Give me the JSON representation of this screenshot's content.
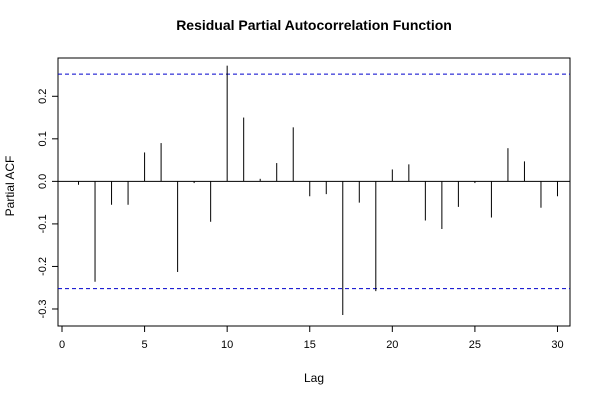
{
  "chart_data": {
    "type": "bar",
    "title": "Residual Partial Autocorrelation Function",
    "xlabel": "Lag",
    "ylabel": "Partial ACF",
    "xlim": [
      0,
      31
    ],
    "ylim": [
      -0.34,
      0.29
    ],
    "x_ticks": [
      0,
      5,
      10,
      15,
      20,
      25,
      30
    ],
    "y_ticks": [
      -0.3,
      -0.2,
      -0.1,
      0.0,
      0.1,
      0.2
    ],
    "y_tick_labels": [
      "-0.3",
      "-0.2",
      "-0.1",
      "0.0",
      "0.1",
      "0.2"
    ],
    "confidence_bounds": [
      0.252,
      -0.252
    ],
    "confidence_line_color": "#0000cc",
    "lags": [
      1,
      2,
      3,
      4,
      5,
      6,
      7,
      8,
      9,
      10,
      11,
      12,
      13,
      14,
      15,
      16,
      17,
      18,
      19,
      20,
      21,
      22,
      23,
      24,
      25,
      26,
      27,
      28,
      29,
      30
    ],
    "values": [
      -0.008,
      -0.236,
      -0.055,
      -0.055,
      0.068,
      0.09,
      -0.213,
      -0.004,
      -0.095,
      0.272,
      0.15,
      0.006,
      0.043,
      0.127,
      -0.035,
      -0.03,
      -0.314,
      -0.05,
      -0.258,
      0.028,
      0.04,
      -0.092,
      -0.112,
      -0.06,
      -0.004,
      -0.085,
      0.078,
      0.047,
      -0.062,
      -0.035
    ],
    "grid": false,
    "legend": "none"
  }
}
